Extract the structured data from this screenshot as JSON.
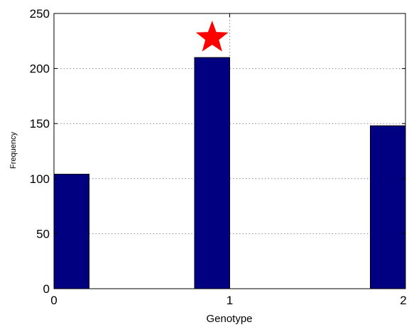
{
  "chart_data": {
    "type": "bar",
    "title": "",
    "xlabel": "Genotype",
    "ylabel": "Frequency",
    "xlim": [
      0,
      2
    ],
    "ylim": [
      0,
      250
    ],
    "x_ticks": [
      "0",
      "1",
      "2"
    ],
    "y_ticks": [
      "0",
      "50",
      "100",
      "150",
      "200",
      "250"
    ],
    "grid": true,
    "bar_color": "#000080",
    "bars": [
      {
        "x_start": 0.0,
        "x_end": 0.2,
        "value": 104
      },
      {
        "x_start": 0.8,
        "x_end": 1.0,
        "value": 210
      },
      {
        "x_start": 1.8,
        "x_end": 2.0,
        "value": 148
      }
    ],
    "annotation": {
      "shape": "star",
      "color": "#ff0000",
      "x": 0.9,
      "y": 228
    }
  }
}
